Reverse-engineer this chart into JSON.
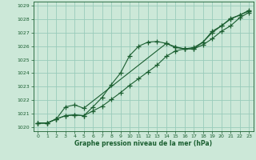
{
  "title": "Graphe pression niveau de la mer (hPa)",
  "bg_color": "#cce8d8",
  "grid_color": "#99ccbb",
  "line_color": "#1a5e30",
  "xlim": [
    -0.5,
    23.5
  ],
  "ylim": [
    1019.7,
    1029.3
  ],
  "yticks": [
    1020,
    1021,
    1022,
    1023,
    1024,
    1025,
    1026,
    1027,
    1028,
    1029
  ],
  "xticks": [
    0,
    1,
    2,
    3,
    4,
    5,
    6,
    7,
    8,
    9,
    10,
    11,
    12,
    13,
    14,
    15,
    16,
    17,
    18,
    19,
    20,
    21,
    22,
    23
  ],
  "line1_x": [
    0,
    1,
    2,
    3,
    4,
    5,
    6,
    7,
    8,
    9,
    10,
    11,
    12,
    13,
    14,
    15,
    16,
    17,
    18,
    19,
    20,
    21,
    22,
    23
  ],
  "line1_y": [
    1020.3,
    1020.3,
    1020.6,
    1020.85,
    1020.9,
    1020.85,
    1021.5,
    1022.2,
    1023.15,
    1024.0,
    1025.3,
    1026.0,
    1026.3,
    1026.35,
    1026.2,
    1025.95,
    1025.8,
    1025.8,
    1026.3,
    1027.1,
    1027.5,
    1028.05,
    1028.3,
    1028.65
  ],
  "line2_x": [
    0,
    1,
    2,
    3,
    4,
    5,
    6,
    7,
    8,
    9,
    10,
    11,
    12,
    13,
    14,
    15,
    16,
    17,
    18,
    19,
    20,
    21,
    22,
    23
  ],
  "line2_y": [
    1020.3,
    1020.3,
    1020.6,
    1020.85,
    1020.9,
    1020.85,
    1021.2,
    1021.55,
    1022.05,
    1022.55,
    1023.1,
    1023.6,
    1024.1,
    1024.6,
    1025.25,
    1025.65,
    1025.8,
    1025.9,
    1026.3,
    1027.0,
    1027.5,
    1028.0,
    1028.3,
    1028.6
  ],
  "line3_x": [
    0,
    1,
    2,
    3,
    4,
    5,
    14,
    15,
    16,
    17,
    18,
    19,
    20,
    21,
    22,
    23
  ],
  "line3_y": [
    1020.3,
    1020.3,
    1020.6,
    1021.5,
    1021.65,
    1021.4,
    1026.2,
    1025.9,
    1025.8,
    1025.8,
    1026.1,
    1026.55,
    1027.1,
    1027.5,
    1028.1,
    1028.5
  ]
}
